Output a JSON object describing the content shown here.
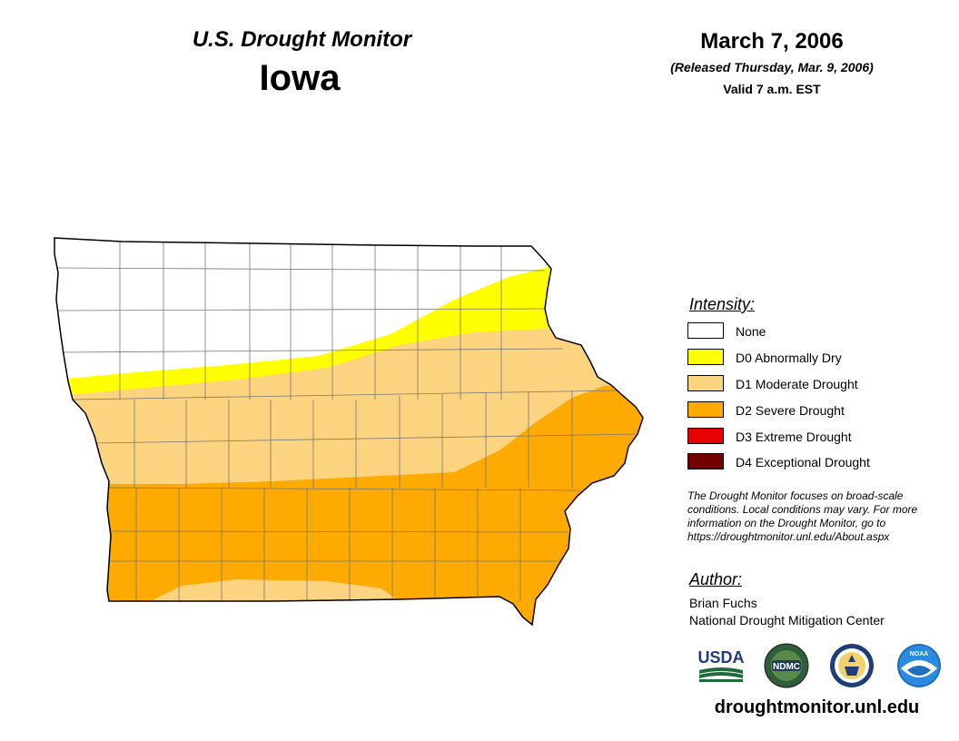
{
  "header": {
    "product": "U.S. Drought Monitor",
    "state": "Iowa",
    "date": "March 7, 2006",
    "released": "(Released Thursday, Mar. 9, 2006)",
    "valid": "Valid 7 a.m. EST"
  },
  "legend": {
    "title": "Intensity:",
    "items": [
      {
        "label": "None",
        "color": "#ffffff"
      },
      {
        "label": "D0 Abnormally Dry",
        "color": "#ffff00"
      },
      {
        "label": "D1 Moderate Drought",
        "color": "#fcd37f"
      },
      {
        "label": "D2 Severe Drought",
        "color": "#ffaa00"
      },
      {
        "label": "D3 Extreme Drought",
        "color": "#e60000"
      },
      {
        "label": "D4 Exceptional Drought",
        "color": "#730000"
      }
    ]
  },
  "disclaimer": "The Drought Monitor focuses on broad-scale conditions. Local conditions may vary. For more information on the Drought Monitor, go to https://droughtmonitor.unl.edu/About.aspx",
  "author": {
    "heading": "Author:",
    "name": "Brian Fuchs",
    "organization": "National Drought Mitigation Center"
  },
  "logos": {
    "usda": "USDA",
    "ndmc": "NDMC",
    "doc": "DOC",
    "noaa": "NOAA"
  },
  "footer": {
    "url": "droughtmonitor.unl.edu"
  }
}
